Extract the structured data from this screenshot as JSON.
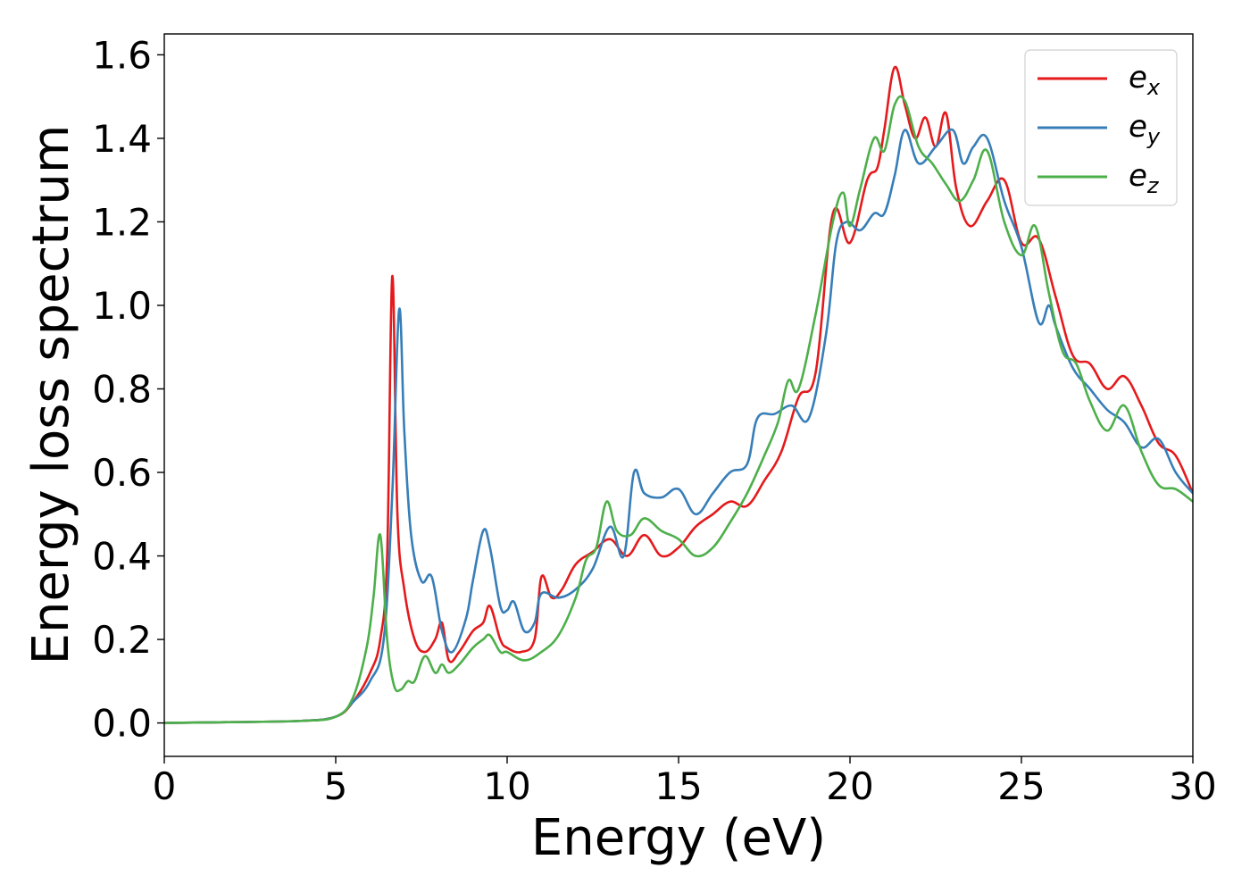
{
  "chart_data": {
    "type": "line",
    "title": "",
    "xlabel": "Energy (eV)",
    "ylabel": "Energy loss spectrum",
    "xlim": [
      0,
      30
    ],
    "ylim": [
      -0.08,
      1.65
    ],
    "xticks": [
      0,
      5,
      10,
      15,
      20,
      25,
      30
    ],
    "xtick_labels": [
      "0",
      "5",
      "10",
      "15",
      "20",
      "25",
      "30"
    ],
    "yticks": [
      0.0,
      0.2,
      0.4,
      0.6,
      0.8,
      1.0,
      1.2,
      1.4,
      1.6
    ],
    "ytick_labels": [
      "0.0",
      "0.2",
      "0.4",
      "0.6",
      "0.8",
      "1.0",
      "1.2",
      "1.4",
      "1.6"
    ],
    "grid": false,
    "legend_position": "top-right",
    "series": [
      {
        "name": "e_x",
        "legend_base": "e",
        "legend_sub": "x",
        "color": "#e41a1c",
        "x": [
          0,
          2,
          4,
          5,
          5.5,
          6,
          6.3,
          6.5,
          6.65,
          6.8,
          7.0,
          7.3,
          7.6,
          7.9,
          8.1,
          8.3,
          8.6,
          9.0,
          9.3,
          9.5,
          9.8,
          10.0,
          10.4,
          10.8,
          11.0,
          11.3,
          11.6,
          12.0,
          12.5,
          13.0,
          13.5,
          14.0,
          14.5,
          15.0,
          15.5,
          16.0,
          16.5,
          17.0,
          17.5,
          18.0,
          18.5,
          19.0,
          19.5,
          20.0,
          20.5,
          20.8,
          21.0,
          21.3,
          21.6,
          21.9,
          22.2,
          22.5,
          22.8,
          23.1,
          23.5,
          24.0,
          24.5,
          25.0,
          25.5,
          26.0,
          26.5,
          27.0,
          27.5,
          28.0,
          28.5,
          29.0,
          29.5,
          30.0
        ],
        "y": [
          0.0,
          0.002,
          0.005,
          0.015,
          0.05,
          0.12,
          0.2,
          0.4,
          1.07,
          0.5,
          0.32,
          0.2,
          0.17,
          0.2,
          0.24,
          0.15,
          0.17,
          0.22,
          0.24,
          0.28,
          0.2,
          0.18,
          0.17,
          0.2,
          0.35,
          0.3,
          0.32,
          0.38,
          0.41,
          0.44,
          0.4,
          0.45,
          0.4,
          0.42,
          0.47,
          0.5,
          0.53,
          0.52,
          0.58,
          0.65,
          0.78,
          0.84,
          1.22,
          1.15,
          1.3,
          1.33,
          1.42,
          1.57,
          1.48,
          1.4,
          1.45,
          1.38,
          1.46,
          1.28,
          1.19,
          1.25,
          1.3,
          1.15,
          1.16,
          1.02,
          0.88,
          0.86,
          0.8,
          0.83,
          0.76,
          0.67,
          0.64,
          0.55
        ]
      },
      {
        "name": "e_y",
        "legend_base": "e",
        "legend_sub": "y",
        "color": "#377eb8",
        "x": [
          0,
          2,
          4,
          5,
          5.5,
          6,
          6.4,
          6.65,
          6.85,
          7.0,
          7.2,
          7.5,
          7.8,
          8.1,
          8.4,
          8.8,
          9.0,
          9.3,
          9.5,
          9.8,
          10.0,
          10.2,
          10.5,
          10.8,
          11.0,
          11.5,
          12.0,
          12.5,
          13.0,
          13.4,
          13.7,
          14.0,
          14.5,
          15.0,
          15.5,
          16.0,
          16.5,
          17.0,
          17.3,
          17.8,
          18.3,
          18.8,
          19.3,
          19.6,
          19.9,
          20.3,
          20.7,
          21.0,
          21.3,
          21.6,
          22.0,
          22.5,
          23.0,
          23.3,
          23.6,
          24.0,
          24.5,
          25.0,
          25.5,
          25.8,
          26.0,
          26.5,
          27.0,
          27.5,
          28.0,
          28.5,
          29.0,
          29.5,
          30.0
        ],
        "y": [
          0.0,
          0.002,
          0.005,
          0.015,
          0.05,
          0.1,
          0.2,
          0.55,
          0.99,
          0.7,
          0.45,
          0.34,
          0.35,
          0.22,
          0.17,
          0.25,
          0.34,
          0.46,
          0.42,
          0.28,
          0.27,
          0.29,
          0.22,
          0.24,
          0.31,
          0.3,
          0.32,
          0.37,
          0.47,
          0.4,
          0.6,
          0.55,
          0.54,
          0.56,
          0.5,
          0.55,
          0.6,
          0.62,
          0.73,
          0.74,
          0.76,
          0.73,
          0.93,
          1.15,
          1.2,
          1.18,
          1.22,
          1.22,
          1.31,
          1.42,
          1.34,
          1.38,
          1.42,
          1.34,
          1.38,
          1.4,
          1.25,
          1.14,
          0.96,
          1.0,
          0.95,
          0.85,
          0.8,
          0.75,
          0.72,
          0.66,
          0.68,
          0.6,
          0.55
        ]
      },
      {
        "name": "e_z",
        "legend_base": "e",
        "legend_sub": "z",
        "color": "#4daf4a",
        "x": [
          0,
          2,
          4,
          5,
          5.5,
          5.9,
          6.1,
          6.3,
          6.5,
          6.7,
          6.9,
          7.1,
          7.3,
          7.6,
          7.9,
          8.1,
          8.3,
          8.6,
          9.0,
          9.3,
          9.5,
          9.8,
          10.0,
          10.5,
          11.0,
          11.5,
          12.0,
          12.3,
          12.6,
          12.9,
          13.2,
          13.6,
          14.0,
          14.5,
          15.0,
          15.5,
          16.0,
          16.5,
          17.0,
          17.5,
          17.9,
          18.2,
          18.5,
          19.0,
          19.5,
          19.8,
          20.0,
          20.3,
          20.7,
          21.0,
          21.3,
          21.6,
          22.0,
          22.4,
          22.8,
          23.2,
          23.6,
          24.0,
          24.5,
          25.0,
          25.4,
          25.8,
          26.2,
          26.6,
          27.0,
          27.5,
          28.0,
          28.5,
          29.0,
          29.5,
          30.0
        ],
        "y": [
          0.0,
          0.002,
          0.005,
          0.015,
          0.06,
          0.18,
          0.3,
          0.45,
          0.2,
          0.09,
          0.08,
          0.1,
          0.1,
          0.16,
          0.12,
          0.14,
          0.12,
          0.14,
          0.18,
          0.2,
          0.21,
          0.17,
          0.17,
          0.15,
          0.17,
          0.21,
          0.3,
          0.39,
          0.42,
          0.53,
          0.46,
          0.45,
          0.49,
          0.46,
          0.44,
          0.4,
          0.42,
          0.48,
          0.55,
          0.64,
          0.72,
          0.82,
          0.8,
          0.98,
          1.2,
          1.27,
          1.19,
          1.28,
          1.4,
          1.37,
          1.48,
          1.49,
          1.38,
          1.34,
          1.29,
          1.25,
          1.3,
          1.37,
          1.2,
          1.12,
          1.19,
          1.03,
          0.89,
          0.86,
          0.77,
          0.7,
          0.76,
          0.65,
          0.57,
          0.56,
          0.53
        ]
      }
    ]
  }
}
